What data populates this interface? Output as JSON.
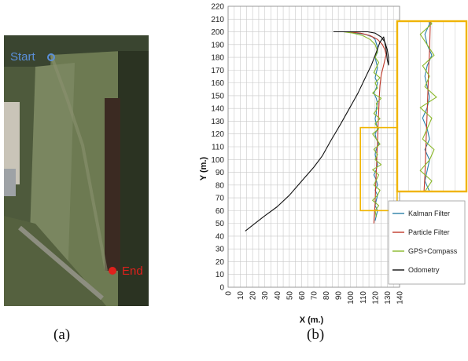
{
  "captions": {
    "a": "(a)",
    "b": "(b)"
  },
  "map": {
    "start_label": "Start",
    "end_label": "End",
    "start_color": "#5a8fd8",
    "end_color": "#e0201c"
  },
  "chart_data": {
    "type": "line",
    "xlabel": "X (m.)",
    "ylabel": "Y (m.)",
    "xlim": [
      0,
      140
    ],
    "ylim": [
      0,
      220
    ],
    "x_ticks": [
      0,
      10,
      20,
      30,
      40,
      50,
      60,
      70,
      80,
      90,
      100,
      110,
      120,
      130,
      140
    ],
    "y_ticks": [
      0,
      10,
      20,
      30,
      40,
      50,
      60,
      70,
      80,
      90,
      100,
      110,
      120,
      130,
      140,
      150,
      160,
      170,
      180,
      190,
      200,
      210,
      220
    ],
    "grid": true,
    "legend_position": "bottom-right",
    "highlight_color": "#f0b400",
    "zoom_box": {
      "x": [
        108,
        138
      ],
      "y": [
        60,
        125
      ]
    },
    "series": [
      {
        "name": "Kalman Filter",
        "color": "#2a7fa8",
        "x": [
          120,
          121,
          122,
          120,
          121,
          122,
          120,
          122,
          121,
          119,
          121,
          122,
          121,
          120,
          121,
          123,
          121,
          120,
          122,
          121,
          120,
          121,
          121,
          122,
          121,
          119,
          121,
          122,
          120,
          121,
          122,
          121,
          120,
          122,
          122,
          121,
          120,
          118,
          112,
          105,
          95,
          89
        ],
        "y": [
          52,
          56,
          60,
          64,
          68,
          72,
          76,
          80,
          84,
          88,
          92,
          96,
          100,
          104,
          108,
          112,
          116,
          120,
          124,
          128,
          132,
          136,
          140,
          144,
          148,
          152,
          156,
          160,
          164,
          168,
          172,
          176,
          180,
          184,
          188,
          191,
          194,
          196,
          198,
          199,
          200,
          200
        ]
      },
      {
        "name": "Particle Filter",
        "color": "#c0392b",
        "x": [
          119,
          119.5,
          120,
          120.3,
          120.6,
          121,
          121.3,
          121.6,
          122,
          122.3,
          122.6,
          123,
          123.3,
          123.6,
          124,
          124.5,
          125,
          126,
          127,
          128,
          129,
          128,
          126,
          122,
          116,
          108,
          98,
          88
        ],
        "y": [
          50,
          58,
          66,
          74,
          82,
          90,
          98,
          106,
          114,
          122,
          130,
          138,
          146,
          152,
          158,
          162,
          166,
          170,
          174,
          178,
          182,
          186,
          190,
          194,
          197,
          199,
          200,
          200
        ]
      },
      {
        "name": "GPS+Compass",
        "color": "#8ab82a",
        "x": [
          121,
          120,
          123,
          118,
          122,
          124,
          119,
          121,
          123,
          118,
          125,
          120,
          122,
          119,
          124,
          121,
          118,
          123,
          120,
          124,
          119,
          122,
          121,
          125,
          118,
          122,
          120,
          124,
          119,
          121,
          123,
          120,
          122,
          120,
          116,
          110,
          102,
          94,
          88
        ],
        "y": [
          55,
          60,
          64,
          68,
          72,
          76,
          80,
          84,
          88,
          92,
          96,
          100,
          104,
          108,
          112,
          116,
          120,
          124,
          128,
          132,
          136,
          140,
          144,
          148,
          152,
          156,
          160,
          164,
          168,
          172,
          176,
          180,
          185,
          190,
          194,
          197,
          199,
          200,
          200
        ]
      },
      {
        "name": "Odometry",
        "color": "#111111",
        "x": [
          14,
          22,
          30,
          40,
          50,
          60,
          70,
          77,
          84,
          92,
          99,
          106,
          112,
          117,
          121,
          124,
          127,
          129,
          130,
          131,
          131,
          130,
          128,
          125,
          120,
          114,
          107,
          100,
          94,
          89,
          86
        ],
        "y": [
          44,
          50,
          56,
          63,
          72,
          83,
          94,
          103,
          115,
          128,
          140,
          152,
          164,
          174,
          184,
          192,
          196,
          186,
          178,
          174,
          180,
          186,
          192,
          196,
          199,
          200,
          200,
          200,
          200,
          200,
          200
        ]
      }
    ]
  }
}
